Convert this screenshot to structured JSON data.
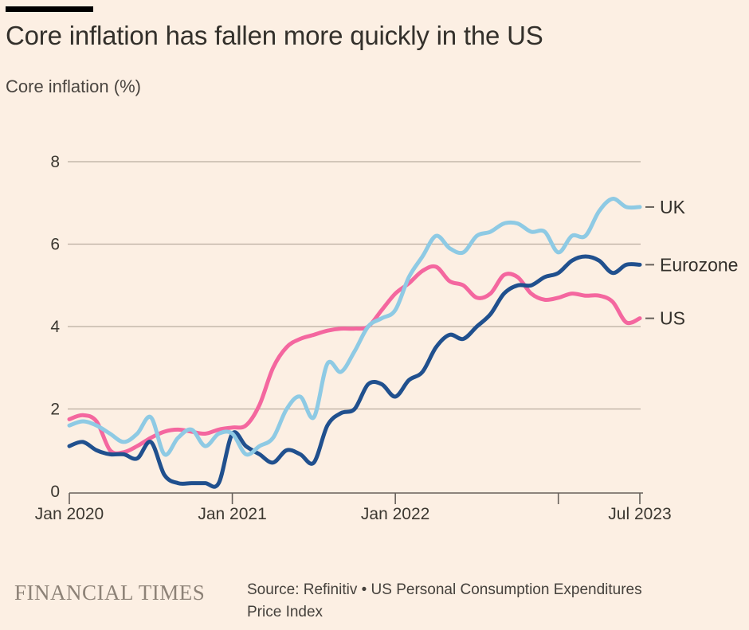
{
  "header": {
    "title": "Core inflation has fallen more quickly in the US",
    "subtitle": "Core inflation (%)"
  },
  "chart_data": {
    "type": "line",
    "title": "Core inflation has fallen more quickly in the US",
    "ylabel": "Core inflation (%)",
    "xlabel": "",
    "ylim": [
      0,
      8
    ],
    "yticks": [
      0,
      2,
      4,
      6,
      8
    ],
    "grid": "horizontal",
    "legend_position": "right-of-line-ends",
    "x_unit": "month",
    "x_range": [
      "Jan 2020",
      "Jul 2023"
    ],
    "xticks": [
      {
        "label": "Jan 2020",
        "month_index": 0
      },
      {
        "label": "Jan 2021",
        "month_index": 12
      },
      {
        "label": "Jan 2022",
        "month_index": 24
      },
      {
        "label": "",
        "month_index": 36
      },
      {
        "label": "Jul 2023",
        "month_index": 42
      }
    ],
    "series": [
      {
        "name": "US",
        "color": "#f4679f",
        "values": [
          1.75,
          1.85,
          1.7,
          1.0,
          0.95,
          1.1,
          1.3,
          1.45,
          1.5,
          1.45,
          1.4,
          1.5,
          1.55,
          1.6,
          2.1,
          3.0,
          3.5,
          3.7,
          3.8,
          3.9,
          3.95,
          3.95,
          4.0,
          4.4,
          4.8,
          5.05,
          5.35,
          5.45,
          5.1,
          5.0,
          4.7,
          4.8,
          5.25,
          5.2,
          4.8,
          4.65,
          4.7,
          4.8,
          4.75,
          4.75,
          4.6,
          4.1,
          4.2
        ]
      },
      {
        "name": "Eurozone",
        "color": "#20508e",
        "values": [
          1.1,
          1.2,
          1.0,
          0.9,
          0.9,
          0.8,
          1.2,
          0.4,
          0.2,
          0.2,
          0.2,
          0.2,
          1.4,
          1.1,
          0.9,
          0.7,
          1.0,
          0.9,
          0.7,
          1.6,
          1.9,
          2.0,
          2.6,
          2.6,
          2.3,
          2.7,
          2.9,
          3.5,
          3.8,
          3.7,
          4.0,
          4.3,
          4.8,
          5.0,
          5.0,
          5.2,
          5.3,
          5.6,
          5.7,
          5.6,
          5.3,
          5.5,
          5.5
        ]
      },
      {
        "name": "UK",
        "color": "#8ecae4",
        "values": [
          1.6,
          1.7,
          1.6,
          1.4,
          1.2,
          1.4,
          1.8,
          0.9,
          1.3,
          1.5,
          1.1,
          1.4,
          1.4,
          0.9,
          1.1,
          1.3,
          2.0,
          2.3,
          1.8,
          3.1,
          2.9,
          3.4,
          4.0,
          4.2,
          4.4,
          5.2,
          5.7,
          6.2,
          5.9,
          5.8,
          6.2,
          6.3,
          6.5,
          6.5,
          6.3,
          6.3,
          5.8,
          6.2,
          6.2,
          6.8,
          7.1,
          6.9,
          6.9
        ]
      }
    ]
  },
  "footer": {
    "brand": "FINANCIAL TIMES",
    "source_lines": [
      "Source: Refinitiv • US Personal Consumption Expenditures",
      "Price Index"
    ]
  },
  "colors": {
    "background": "#fcefe3",
    "accent_bar": "#000000",
    "title": "#33302b",
    "subtitle": "#4a4540",
    "grid": "#b9ada0",
    "axis": "#66605a",
    "tick_label": "#3c3831",
    "series_label": "#33302b",
    "brand": "#8d8277",
    "source": "#45413c"
  }
}
